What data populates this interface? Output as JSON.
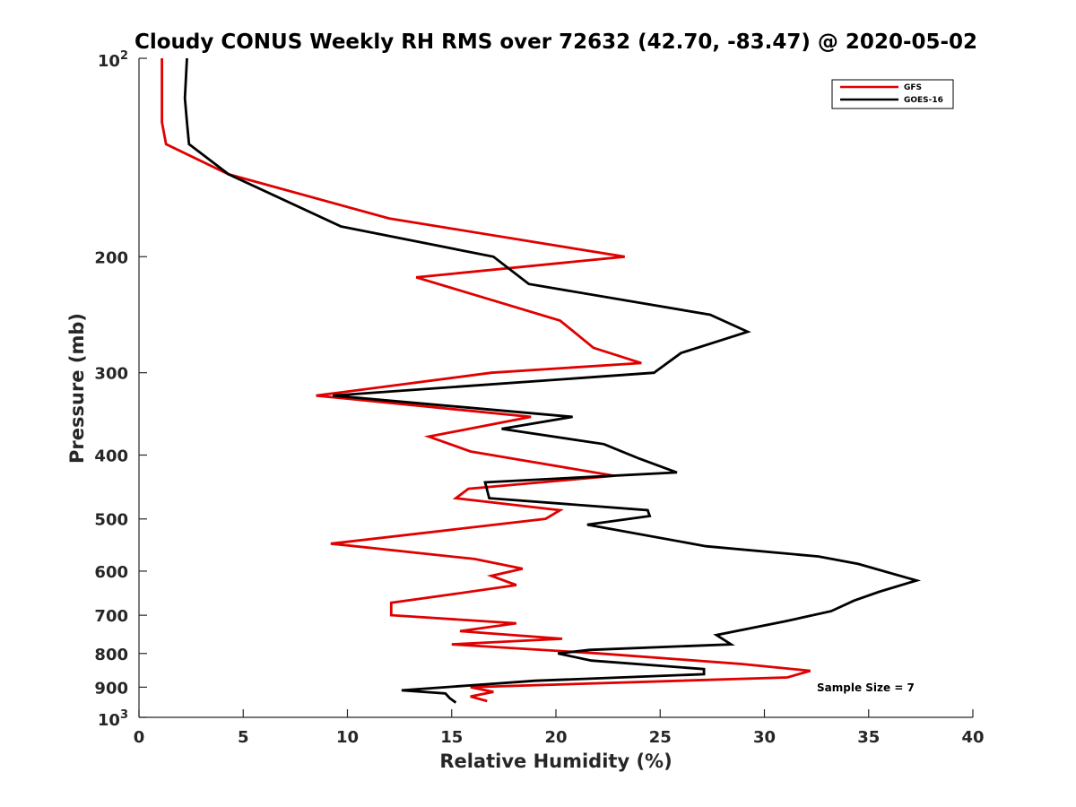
{
  "chart_data": {
    "type": "line",
    "title": "Cloudy CONUS Weekly RH RMS over 72632 (42.70, -83.47) @ 2020-05-02",
    "xlabel": "Relative Humidity (%)",
    "ylabel": "Pressure (mb)",
    "xlim": [
      0,
      40
    ],
    "ylim": [
      100,
      1000
    ],
    "y_scale": "log",
    "y_reversed": true,
    "grid": false,
    "legend_position": "top-right",
    "x_ticks": [
      "0",
      "5",
      "10",
      "15",
      "20",
      "25",
      "30",
      "35",
      "40"
    ],
    "y_ticks": [
      {
        "value": 100,
        "base": "10",
        "exp": "2"
      },
      {
        "value": 200,
        "label": "200"
      },
      {
        "value": 300,
        "label": "300"
      },
      {
        "value": 400,
        "label": "400"
      },
      {
        "value": 500,
        "label": "500"
      },
      {
        "value": 600,
        "label": "600"
      },
      {
        "value": 700,
        "label": "700"
      },
      {
        "value": 800,
        "label": "800"
      },
      {
        "value": 900,
        "label": "900"
      },
      {
        "value": 1000,
        "base": "10",
        "exp": "3"
      }
    ],
    "series": [
      {
        "name": "GFS",
        "color": "#e00000",
        "points": [
          [
            1.1,
            100
          ],
          [
            1.1,
            115
          ],
          [
            1.1,
            125
          ],
          [
            1.3,
            135
          ],
          [
            4.3,
            150
          ],
          [
            12.0,
            175
          ],
          [
            23.3,
            200
          ],
          [
            13.3,
            215
          ],
          [
            20.2,
            250
          ],
          [
            21.8,
            275
          ],
          [
            24.1,
            290
          ],
          [
            16.9,
            300
          ],
          [
            8.5,
            325
          ],
          [
            18.8,
            350
          ],
          [
            13.9,
            375
          ],
          [
            15.9,
            395
          ],
          [
            22.8,
            430
          ],
          [
            15.8,
            450
          ],
          [
            15.2,
            465
          ],
          [
            20.2,
            485
          ],
          [
            19.5,
            500
          ],
          [
            9.2,
            545
          ],
          [
            16.1,
            575
          ],
          [
            18.4,
            595
          ],
          [
            16.9,
            610
          ],
          [
            18.1,
            630
          ],
          [
            15.1,
            650
          ],
          [
            12.1,
            670
          ],
          [
            12.1,
            700
          ],
          [
            18.1,
            720
          ],
          [
            15.4,
            740
          ],
          [
            20.3,
            760
          ],
          [
            15.0,
            775
          ],
          [
            22.1,
            800
          ],
          [
            28.9,
            830
          ],
          [
            32.2,
            850
          ],
          [
            31.1,
            870
          ],
          [
            15.9,
            900
          ],
          [
            17.0,
            915
          ],
          [
            15.9,
            930
          ],
          [
            16.7,
            945
          ]
        ]
      },
      {
        "name": "GOES-16",
        "color": "#000000",
        "points": [
          [
            2.3,
            100
          ],
          [
            2.2,
            115
          ],
          [
            2.3,
            125
          ],
          [
            2.4,
            135
          ],
          [
            4.3,
            150
          ],
          [
            9.7,
            180
          ],
          [
            17.0,
            200
          ],
          [
            18.7,
            220
          ],
          [
            27.4,
            245
          ],
          [
            29.2,
            260
          ],
          [
            26.0,
            280
          ],
          [
            24.7,
            300
          ],
          [
            9.3,
            325
          ],
          [
            20.8,
            350
          ],
          [
            17.4,
            365
          ],
          [
            22.3,
            385
          ],
          [
            24.0,
            405
          ],
          [
            25.8,
            425
          ],
          [
            16.6,
            440
          ],
          [
            16.8,
            465
          ],
          [
            24.4,
            485
          ],
          [
            24.5,
            495
          ],
          [
            21.5,
            510
          ],
          [
            27.2,
            550
          ],
          [
            32.6,
            570
          ],
          [
            34.5,
            585
          ],
          [
            37.3,
            620
          ],
          [
            35.5,
            645
          ],
          [
            34.3,
            665
          ],
          [
            33.2,
            690
          ],
          [
            31.0,
            715
          ],
          [
            27.7,
            750
          ],
          [
            28.4,
            775
          ],
          [
            21.6,
            790
          ],
          [
            20.1,
            800
          ],
          [
            21.7,
            820
          ],
          [
            27.1,
            845
          ],
          [
            27.1,
            860
          ],
          [
            19.0,
            880
          ],
          [
            12.6,
            910
          ],
          [
            14.7,
            920
          ],
          [
            14.9,
            935
          ],
          [
            15.2,
            950
          ]
        ]
      }
    ],
    "annotation": "Sample Size = 7"
  }
}
